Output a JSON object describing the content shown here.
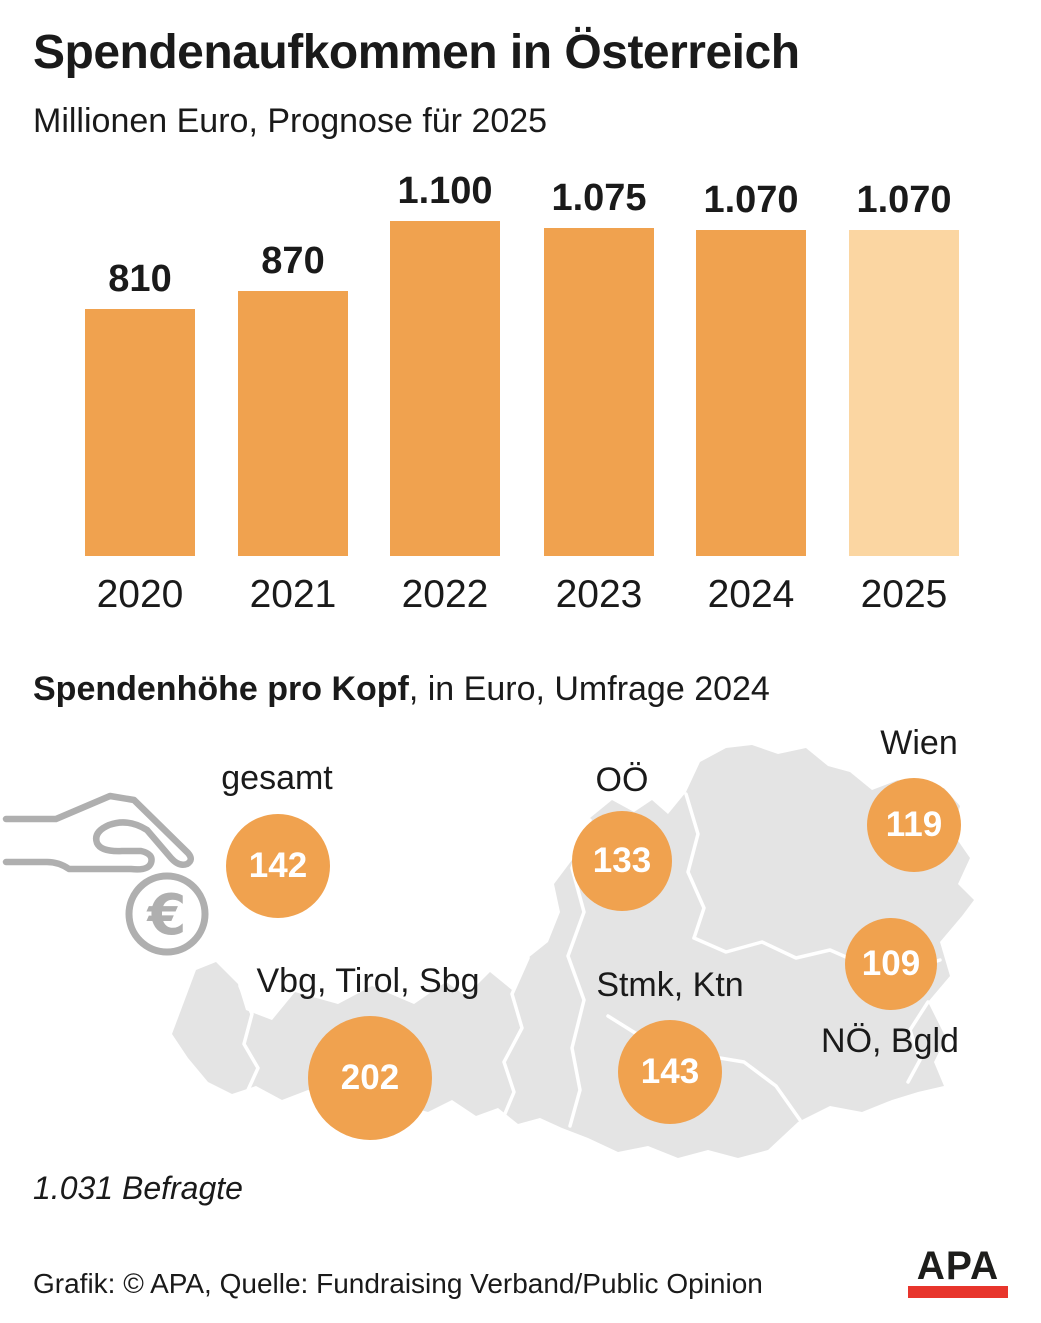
{
  "title": "Spendenaufkommen in Österreich",
  "subtitle": "Millionen Euro, Prognose für 2025",
  "chart_data": {
    "type": "bar",
    "title": "Spendenaufkommen in Österreich",
    "unit": "Millionen Euro",
    "note": "Prognose für 2025",
    "categories": [
      "2020",
      "2021",
      "2022",
      "2023",
      "2024",
      "2025"
    ],
    "values": [
      810,
      870,
      1100,
      1075,
      1070,
      1070
    ],
    "value_labels": [
      "810",
      "870",
      "1.100",
      "1.075",
      "1.070",
      "1.070"
    ],
    "ylim": [
      0,
      1100
    ],
    "grid": false,
    "legend": "none",
    "bar_color": "#F0A24F",
    "forecast_bar_color": "#FBD6A2",
    "forecast_category": "2025"
  },
  "map_section": {
    "heading_bold": "Spendenhöhe pro Kopf",
    "heading_rest": ", in Euro, Umfrage 2024",
    "regions": [
      {
        "label": "gesamt",
        "value": "142"
      },
      {
        "label": "OÖ",
        "value": "133"
      },
      {
        "label": "Wien",
        "value": "119"
      },
      {
        "label": "NÖ, Bgld",
        "value": "109"
      },
      {
        "label": "Vbg, Tirol, Sbg",
        "value": "202"
      },
      {
        "label": "Stmk, Ktn",
        "value": "143"
      }
    ],
    "survey_note": "1.031 Befragte"
  },
  "footer": {
    "credit": "Grafik: © APA, Quelle: Fundraising Verband/Public Opinion",
    "logo_text": "APA"
  },
  "colors": {
    "bar_orange": "#F0A24F",
    "bar_light_orange": "#FBD6A2",
    "map_gray": "#E4E4E4",
    "icon_gray": "#AFAFAF",
    "logo_red": "#E8352C",
    "text": "#1a1a1a",
    "bubble_text": "#ffffff"
  }
}
